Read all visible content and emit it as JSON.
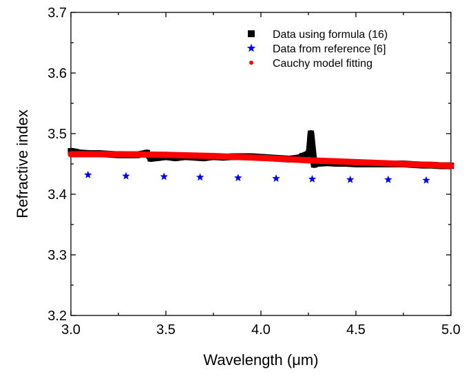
{
  "chart_data": {
    "type": "scatter",
    "xlabel": "Wavelength (μm)",
    "ylabel": "Refractive index",
    "xlim": [
      3.0,
      5.0
    ],
    "ylim": [
      3.2,
      3.7
    ],
    "xticks": [
      3.0,
      3.5,
      4.0,
      4.5,
      5.0
    ],
    "xtick_labels": [
      "3.0",
      "3.5",
      "4.0",
      "4.5",
      "5.0"
    ],
    "yticks": [
      3.2,
      3.3,
      3.4,
      3.5,
      3.6,
      3.7
    ],
    "ytick_labels": [
      "3.2",
      "3.3",
      "3.4",
      "3.5",
      "3.6",
      "3.7"
    ],
    "grid": false,
    "legend_position": "top-right",
    "series": [
      {
        "name": "Data using formula (16)",
        "marker": "square",
        "color": "#000000",
        "points": [
          [
            3.0,
            3.471
          ],
          [
            3.02,
            3.47
          ],
          [
            3.05,
            3.468
          ],
          [
            3.1,
            3.467
          ],
          [
            3.15,
            3.467
          ],
          [
            3.2,
            3.466
          ],
          [
            3.25,
            3.465
          ],
          [
            3.3,
            3.465
          ],
          [
            3.35,
            3.465
          ],
          [
            3.4,
            3.468
          ],
          [
            3.42,
            3.459
          ],
          [
            3.45,
            3.46
          ],
          [
            3.5,
            3.462
          ],
          [
            3.55,
            3.46
          ],
          [
            3.6,
            3.462
          ],
          [
            3.65,
            3.461
          ],
          [
            3.7,
            3.46
          ],
          [
            3.75,
            3.462
          ],
          [
            3.8,
            3.461
          ],
          [
            3.85,
            3.462
          ],
          [
            3.9,
            3.462
          ],
          [
            3.95,
            3.462
          ],
          [
            4.0,
            3.461
          ],
          [
            4.05,
            3.46
          ],
          [
            4.1,
            3.459
          ],
          [
            4.15,
            3.458
          ],
          [
            4.2,
            3.46
          ],
          [
            4.22,
            3.463
          ],
          [
            4.24,
            3.465
          ],
          [
            4.255,
            3.47
          ],
          [
            4.26,
            3.487
          ],
          [
            4.263,
            3.5
          ],
          [
            4.28,
            3.449
          ],
          [
            4.3,
            3.451
          ],
          [
            4.35,
            3.452
          ],
          [
            4.4,
            3.451
          ],
          [
            4.45,
            3.451
          ],
          [
            4.5,
            3.45
          ],
          [
            4.55,
            3.45
          ],
          [
            4.6,
            3.45
          ],
          [
            4.65,
            3.45
          ],
          [
            4.7,
            3.45
          ],
          [
            4.75,
            3.45
          ],
          [
            4.8,
            3.449
          ],
          [
            4.85,
            3.448
          ],
          [
            4.9,
            3.448
          ],
          [
            4.95,
            3.447
          ],
          [
            5.0,
            3.447
          ]
        ]
      },
      {
        "name": "Data from reference [6]",
        "marker": "star",
        "color": "#0000ff",
        "points": [
          [
            3.09,
            3.432
          ],
          [
            3.29,
            3.43
          ],
          [
            3.49,
            3.429
          ],
          [
            3.68,
            3.428
          ],
          [
            3.88,
            3.427
          ],
          [
            4.08,
            3.426
          ],
          [
            4.27,
            3.425
          ],
          [
            4.47,
            3.424
          ],
          [
            4.67,
            3.424
          ],
          [
            4.87,
            3.423
          ]
        ]
      },
      {
        "name": "Cauchy model fitting",
        "marker": "circle",
        "color": "#ff0000",
        "points": [
          [
            3.0,
            3.466
          ],
          [
            3.25,
            3.466
          ],
          [
            3.5,
            3.465
          ],
          [
            3.75,
            3.463
          ],
          [
            4.0,
            3.46
          ],
          [
            4.25,
            3.456
          ],
          [
            4.5,
            3.453
          ],
          [
            4.75,
            3.45
          ],
          [
            5.0,
            3.447
          ]
        ]
      }
    ]
  }
}
